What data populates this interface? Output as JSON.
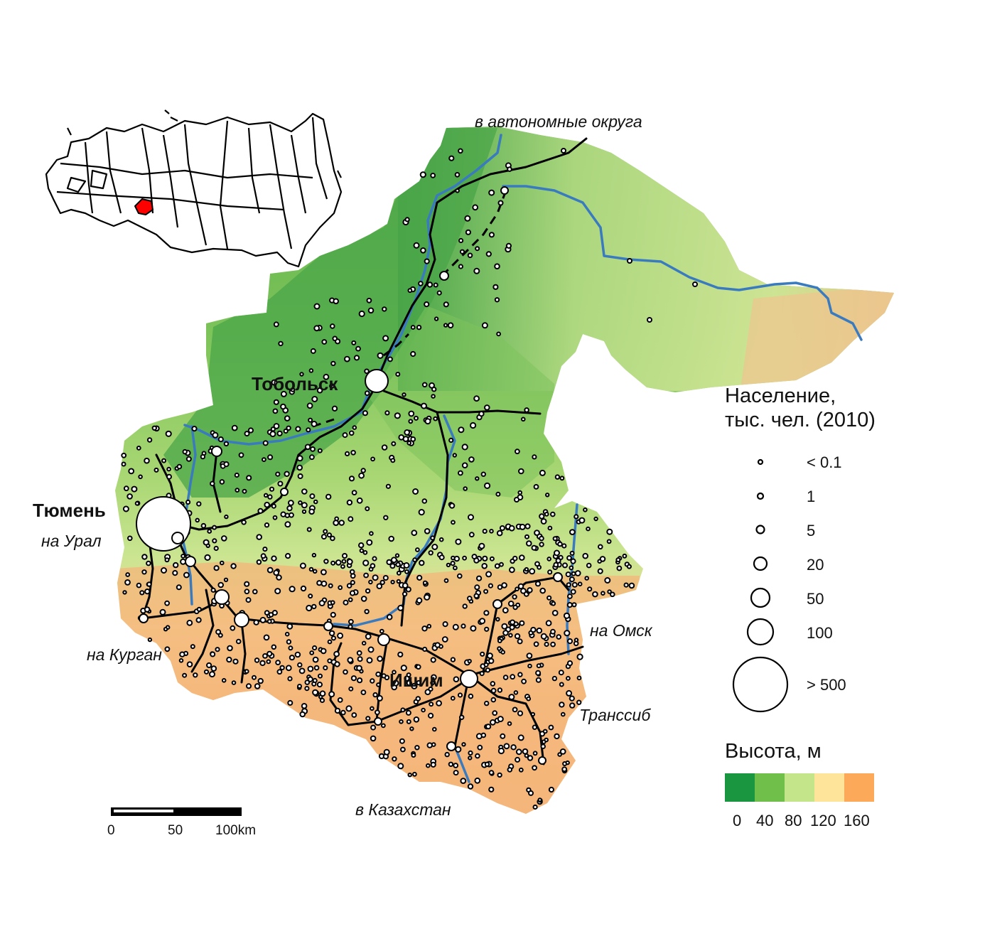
{
  "map": {
    "city_labels": [
      {
        "id": "tobolsk",
        "text": "Тобольск"
      },
      {
        "id": "tyumen",
        "text": "Тюмень"
      },
      {
        "id": "ishim",
        "text": "Ишим"
      }
    ],
    "direction_labels": [
      {
        "id": "okrugs",
        "text": "в автономные округа"
      },
      {
        "id": "ural",
        "text": "на Урал"
      },
      {
        "id": "kurgan",
        "text": "на Курган"
      },
      {
        "id": "omsk",
        "text": "на Омск"
      },
      {
        "id": "transsib",
        "text": "Транссиб"
      },
      {
        "id": "kazakhstan",
        "text": "в Казахстан"
      }
    ],
    "colors": {
      "river": "#3a7bbf",
      "road": "#000000",
      "highlight_region": "#ff0000"
    }
  },
  "population_legend": {
    "title_line1": "Население,",
    "title_line2": "тыс. чел. (2010)",
    "entries": [
      "< 0.1",
      "1",
      "5",
      "20",
      "50",
      "100",
      "> 500"
    ]
  },
  "elevation_legend": {
    "title": "Высота, м",
    "ticks": [
      "0",
      "40",
      "80",
      "120",
      "160"
    ],
    "colors": [
      "#1a9641",
      "#6fbf4a",
      "#c5e58b",
      "#fde49a",
      "#fca95a"
    ]
  },
  "scale_bar": {
    "labels": [
      "0",
      "50",
      "100km"
    ]
  }
}
